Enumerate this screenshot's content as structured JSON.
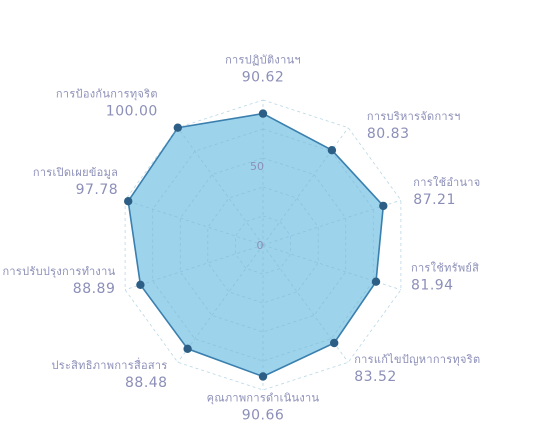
{
  "colors": {
    "fill": "#8ccbe8",
    "stroke": "#3a7fae",
    "point": "#2d5f86",
    "label": "#8c8fb8"
  },
  "chart_data": {
    "type": "radar",
    "title": "",
    "categories": [
      "การปฏิบัติงานฯ",
      "การบริหารจัดการฯ",
      "การใช้อำนาจ",
      "การใช้ทรัพย์สิ",
      "การแก้ไขปัญหาการทุจริต",
      "คุณภาพการดำเนินงาน",
      "ประสิทธิภาพการสื่อสาร",
      "การปรับปรุงการทำงาน",
      "การเปิดเผยข้อมูล",
      "การป้องกันการทุจริต"
    ],
    "values": [
      90.62,
      80.83,
      87.21,
      81.94,
      83.52,
      90.66,
      88.48,
      88.89,
      97.78,
      100.0
    ],
    "value_labels": [
      "90.62",
      "80.83",
      "87.21",
      "81.94",
      "83.52",
      "90.66",
      "88.48",
      "88.89",
      "97.78",
      "100.00"
    ],
    "ticks": [
      "0",
      "50"
    ],
    "rlim": [
      0,
      100
    ],
    "grid": true
  }
}
